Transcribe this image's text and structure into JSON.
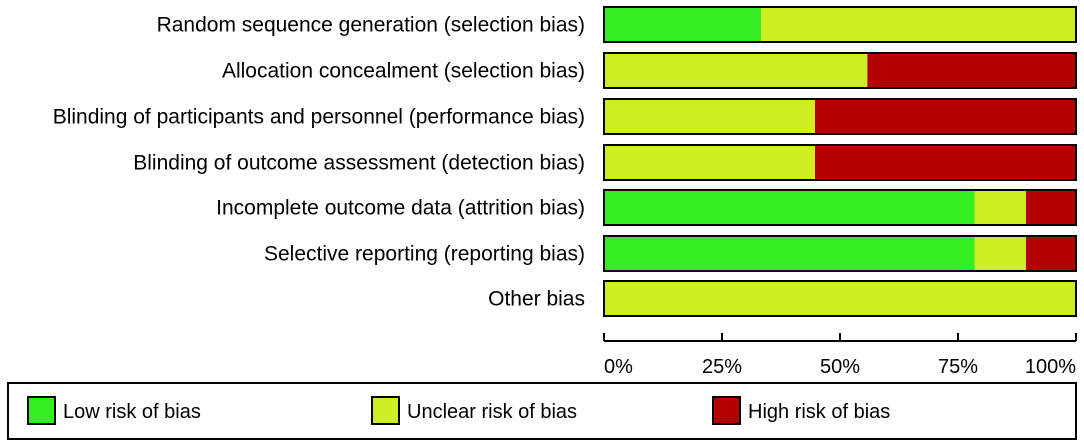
{
  "chart_data": {
    "type": "stacked-bar-horizontal",
    "categories": [
      "Random sequence generation (selection bias)",
      "Allocation concealment (selection bias)",
      "Blinding of participants and personnel (performance bias)",
      "Blinding of outcome assessment (detection bias)",
      "Incomplete outcome data (attrition bias)",
      "Selective reporting (reporting bias)",
      "Other bias"
    ],
    "series": [
      {
        "name": "Low risk of bias",
        "color": "#33ee22",
        "values": [
          33.3,
          0,
          0,
          0,
          78.5,
          78.5,
          0
        ]
      },
      {
        "name": "Unclear risk of bias",
        "color": "#ccee22",
        "values": [
          66.7,
          55.8,
          44.7,
          44.7,
          10.9,
          10.9,
          100
        ]
      },
      {
        "name": "High risk of bias",
        "color": "#b30000",
        "values": [
          0,
          44.2,
          55.3,
          55.3,
          10.6,
          10.6,
          0
        ]
      }
    ],
    "xlim": [
      0,
      100
    ],
    "ticks": [
      0,
      25,
      50,
      75,
      100
    ],
    "tick_labels": [
      "0%",
      "25%",
      "50%",
      "75%",
      "100%"
    ],
    "legend_position": "bottom"
  }
}
